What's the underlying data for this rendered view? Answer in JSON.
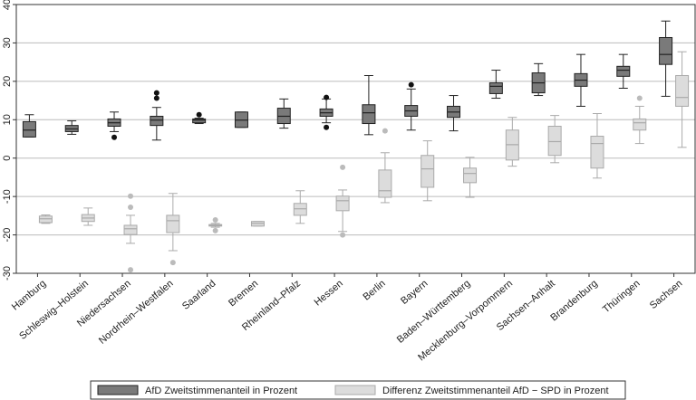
{
  "chart_data": {
    "type": "boxplot",
    "categories": [
      "Hamburg",
      "Schleswig–Holstein",
      "Niedersachsen",
      "Nordrhein–Westfalen",
      "Saarland",
      "Bremen",
      "Rheinland–Pfalz",
      "Hessen",
      "Berlin",
      "Bayern",
      "Baden–Württemberg",
      "Mecklenburg–Vorpommern",
      "Sachsen–Anhalt",
      "Brandenburg",
      "Thüringen",
      "Sachsen"
    ],
    "series": [
      {
        "name": "AfD Zweitstimmenanteil in Prozent",
        "color": "#7a7a7a",
        "values": [
          {
            "low": 5.5,
            "q1": 5.5,
            "median": 7.3,
            "q3": 9.5,
            "high": 11.3
          },
          {
            "low": 6.2,
            "q1": 6.9,
            "median": 7.6,
            "q3": 8.5,
            "high": 9.7
          },
          {
            "low": 6.9,
            "q1": 8.3,
            "median": 9.2,
            "q3": 10.2,
            "high": 12,
            "outliers": [
              5.4
            ]
          },
          {
            "low": 4.7,
            "q1": 8.5,
            "median": 9.9,
            "q3": 10.9,
            "high": 13.2,
            "outliers": [
              17,
              15.6
            ]
          },
          {
            "low": 9,
            "q1": 9.2,
            "median": 9.9,
            "q3": 10.2,
            "high": 10.4,
            "outliers": [
              11.3
            ]
          },
          {
            "low": 8,
            "q1": 8,
            "median": 9.9,
            "q3": 12,
            "high": 12
          },
          {
            "low": 7.8,
            "q1": 9,
            "median": 10.9,
            "q3": 13,
            "high": 15.4
          },
          {
            "low": 9.2,
            "q1": 10.9,
            "median": 11.8,
            "q3": 12.8,
            "high": 15.4,
            "outliers": [
              15.8,
              8
            ]
          },
          {
            "low": 6.1,
            "q1": 9,
            "median": 11.8,
            "q3": 13.9,
            "high": 21.5
          },
          {
            "low": 7.3,
            "q1": 10.9,
            "median": 12.3,
            "q3": 13.7,
            "high": 18,
            "outliers": [
              19.1
            ]
          },
          {
            "low": 7.1,
            "q1": 10.6,
            "median": 12,
            "q3": 13.5,
            "high": 16.3
          },
          {
            "low": 15.6,
            "q1": 16.8,
            "median": 18.7,
            "q3": 19.6,
            "high": 22.9
          },
          {
            "low": 16.3,
            "q1": 17,
            "median": 19.6,
            "q3": 22.2,
            "high": 24.6
          },
          {
            "low": 13.5,
            "q1": 18.7,
            "median": 20.3,
            "q3": 22,
            "high": 27
          },
          {
            "low": 18.2,
            "q1": 21.3,
            "median": 22.9,
            "q3": 23.9,
            "high": 27
          },
          {
            "low": 16.1,
            "q1": 24.4,
            "median": 27,
            "q3": 31.4,
            "high": 35.7
          }
        ]
      },
      {
        "name": "Differenz Zweitstimmenanteil AfD − SPD in Prozent",
        "color": "#dcdcdc",
        "values": [
          {
            "low": -17,
            "q1": -16.8,
            "median": -15.8,
            "q3": -15.1,
            "high": -14.8
          },
          {
            "low": -17.5,
            "q1": -16.5,
            "median": -15.6,
            "q3": -14.7,
            "high": -13
          },
          {
            "low": -22.2,
            "q1": -19.9,
            "median": -18.4,
            "q3": -17.5,
            "high": -14.9,
            "outliers": [
              -9.9,
              -12.8,
              -29.1
            ]
          },
          {
            "low": -24.1,
            "q1": -19.4,
            "median": -16.3,
            "q3": -14.9,
            "high": -9.2,
            "outliers": [
              -27.2
            ]
          },
          {
            "low": -18,
            "q1": -17.7,
            "median": -17.5,
            "q3": -17.3,
            "high": -17,
            "outliers": [
              -16.1,
              -18.9
            ]
          },
          {
            "low": -17.7,
            "q1": -17.7,
            "median": -17,
            "q3": -16.5,
            "high": -16.5
          },
          {
            "low": -17,
            "q1": -14.9,
            "median": -13.2,
            "q3": -11.8,
            "high": -8.5
          },
          {
            "low": -19.1,
            "q1": -13.7,
            "median": -11.1,
            "q3": -9.9,
            "high": -8.3,
            "outliers": [
              -2.4,
              -20
            ]
          },
          {
            "low": -11.6,
            "q1": -10.2,
            "median": -8.5,
            "q3": -3.1,
            "high": 1.4,
            "outliers": [
              7.1
            ]
          },
          {
            "low": -11.1,
            "q1": -7.6,
            "median": -2.8,
            "q3": 0.7,
            "high": 4.5
          },
          {
            "low": -10.2,
            "q1": -6.4,
            "median": -4,
            "q3": -2.6,
            "high": 0.2
          },
          {
            "low": -2.1,
            "q1": -0.5,
            "median": 3.5,
            "q3": 7.3,
            "high": 10.6
          },
          {
            "low": -1.2,
            "q1": 0.7,
            "median": 4.3,
            "q3": 8.3,
            "high": 11.1
          },
          {
            "low": -5.2,
            "q1": -2.6,
            "median": 3.8,
            "q3": 5.7,
            "high": 11.6
          },
          {
            "low": 3.8,
            "q1": 7.3,
            "median": 9.2,
            "q3": 10.2,
            "high": 13.5,
            "outliers": [
              15.6
            ]
          },
          {
            "low": 2.8,
            "q1": 13.5,
            "median": 15.8,
            "q3": 21.5,
            "high": 27.7
          }
        ]
      }
    ],
    "ylim": [
      -30,
      40
    ],
    "yticks": [
      -30,
      -20,
      -10,
      0,
      10,
      20,
      30,
      40
    ],
    "grid": true,
    "legend": "bottom"
  }
}
